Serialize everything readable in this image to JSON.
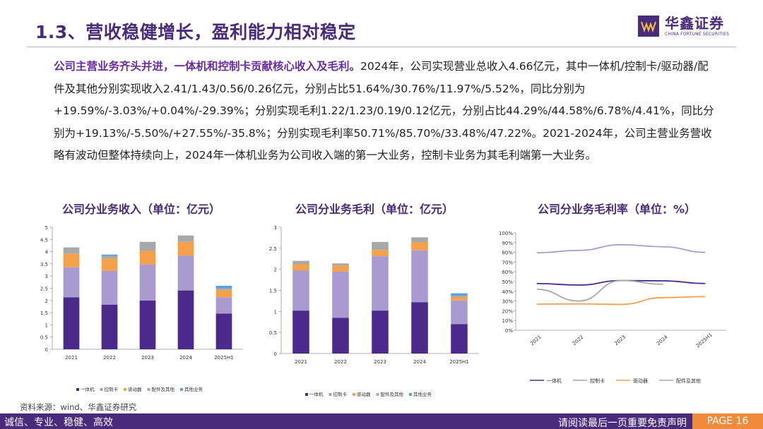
{
  "header": {
    "title": "1.3、营收稳健增长，盈利能力相对稳定",
    "logo_cn": "华鑫证券",
    "logo_en": "CHINA FORTUNE SECURITIES"
  },
  "summary": {
    "lead": "公司主营业务齐头并进，一体机和控制卡贡献核心收入及毛利。",
    "body": "2024年，公司实现营业总收入4.66亿元，其中一体机/控制卡/驱动器/配件及其他分别实现收入2.41/1.43/0.56/0.26亿元，分别占比51.64%/30.76%/11.97%/5.52%，同比分别为+19.59%/-3.03%/+0.04%/-29.39%；分别实现毛利1.22/1.23/0.19/0.12亿元，分别占比44.29%/44.58%/6.78%/4.41%，同比分别为+19.13%/-5.50%/+27.55%/-35.8%；分别实现毛利率50.71%/85.70%/33.48%/47.22%。2021-2024年，公司主营业务营收略有波动但整体持续向上，2024年一体机业务为公司收入端的第一大业务，控制卡业务为其毛利端第一大业务。"
  },
  "chart_titles": {
    "revenue": "公司分业务收入（单位：亿元）",
    "gross_profit": "公司分业务毛利（单位：亿元）",
    "margin": "公司分业务毛利率（单位：%）"
  },
  "chart_data": [
    {
      "type": "bar",
      "stacked": true,
      "categories": [
        "2021",
        "2022",
        "2023",
        "2024",
        "2025H1"
      ],
      "ylim": [
        0,
        5
      ],
      "yticks": [
        "0",
        "0.5",
        "1",
        "1.5",
        "2",
        "2.5",
        "3",
        "3.5",
        "4",
        "4.5",
        "5"
      ],
      "legend_position": "bottom",
      "series": [
        {
          "name": "一体机",
          "color": "#4b2a8c",
          "values": [
            2.13,
            1.83,
            2.0,
            2.41,
            1.46
          ]
        },
        {
          "name": "控制卡",
          "color": "#a99bd0",
          "values": [
            1.23,
            1.38,
            1.47,
            1.43,
            0.67
          ]
        },
        {
          "name": "驱动器",
          "color": "#f5a04a",
          "values": [
            0.56,
            0.5,
            0.56,
            0.56,
            0.3
          ]
        },
        {
          "name": "配件及其他",
          "color": "#a8a8a8",
          "values": [
            0.23,
            0.12,
            0.37,
            0.26,
            0.06
          ]
        },
        {
          "name": "其他业务",
          "color": "#5aa0e6",
          "values": [
            0.02,
            0.05,
            0.0,
            0.0,
            0.11
          ]
        }
      ]
    },
    {
      "type": "bar",
      "stacked": true,
      "categories": [
        "2021",
        "2022",
        "2023",
        "2024",
        "2025H1"
      ],
      "ylim": [
        0,
        3
      ],
      "yticks": [
        "0",
        "0.5",
        "1",
        "1.5",
        "2",
        "2.5",
        "3"
      ],
      "legend_position": "bottom",
      "series": [
        {
          "name": "一体机",
          "color": "#4b2a8c",
          "values": [
            1.02,
            0.85,
            1.02,
            1.22,
            0.7
          ]
        },
        {
          "name": "控制卡",
          "color": "#a99bd0",
          "values": [
            0.95,
            1.1,
            1.29,
            1.23,
            0.56
          ]
        },
        {
          "name": "驱动器",
          "color": "#f5a04a",
          "values": [
            0.15,
            0.14,
            0.15,
            0.19,
            0.08
          ]
        },
        {
          "name": "配件及其他",
          "color": "#a8a8a8",
          "values": [
            0.08,
            0.05,
            0.19,
            0.12,
            0.03
          ]
        },
        {
          "name": "其他业务",
          "color": "#5aa0e6",
          "values": [
            0.0,
            0.0,
            0.0,
            0.0,
            0.06
          ]
        }
      ]
    },
    {
      "type": "line",
      "categories": [
        "2021",
        "2022",
        "2023",
        "2024",
        "2025H1"
      ],
      "ylim": [
        0,
        100
      ],
      "yticks": [
        "0%",
        "10%",
        "20%",
        "30%",
        "40%",
        "50%",
        "60%",
        "70%",
        "80%",
        "90%",
        "100%"
      ],
      "legend_position": "bottom",
      "series": [
        {
          "name": "一体机",
          "color": "#4b2a8c",
          "values": [
            47.9,
            46.4,
            51.0,
            50.71,
            48.0
          ]
        },
        {
          "name": "控制卡",
          "color": "#a99bd0",
          "values": [
            79.5,
            82.0,
            87.8,
            85.7,
            80.0
          ]
        },
        {
          "name": "驱动器",
          "color": "#f5a04a",
          "values": [
            26.8,
            27.0,
            26.5,
            33.48,
            34.5
          ]
        },
        {
          "name": "配件及其他",
          "color": "#a8a8a8",
          "values": [
            42.0,
            30.0,
            51.0,
            47.22,
            null
          ]
        }
      ]
    }
  ],
  "source": "资料来源：wind、华鑫证券研究",
  "footer": {
    "left": "诚信、专业、稳健、高效",
    "right": "请阅读最后一页重要免责声明",
    "page": "PAGE 16"
  }
}
